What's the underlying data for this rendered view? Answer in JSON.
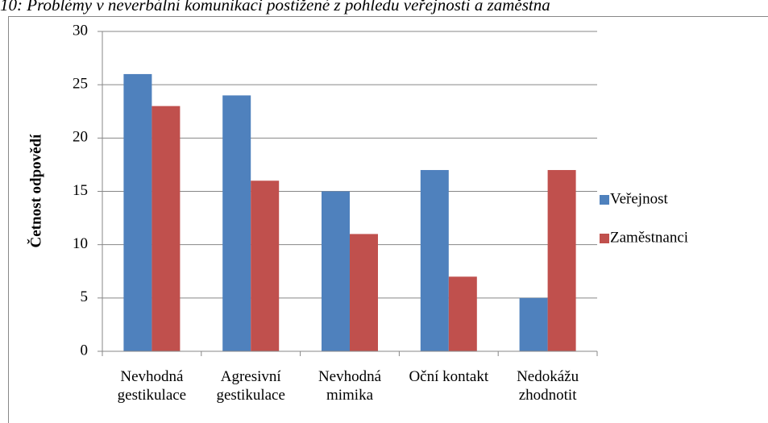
{
  "chart_data": {
    "type": "bar",
    "title": "10: Problémy v neverbální komunikaci postižené z pohledu veřejnosti a zaměstna",
    "ylabel": "Četnost odpovědí",
    "categories": [
      "Nevhodná gestikulace",
      "Agresivní gestikulace",
      "Nevhodná mimika",
      "Oční kontakt",
      "Nedokážu zhodnotit"
    ],
    "series": [
      {
        "name": "Veřejnost",
        "color": "#4f81bd",
        "values": [
          26,
          24,
          15,
          17,
          5
        ]
      },
      {
        "name": "Zaměstnanci",
        "color": "#c0504d",
        "values": [
          23,
          16,
          11,
          7,
          17
        ]
      }
    ],
    "ylim": [
      0,
      30
    ],
    "yticks": [
      0,
      5,
      10,
      15,
      20,
      25,
      30
    ],
    "grid": true,
    "legend": "right"
  }
}
